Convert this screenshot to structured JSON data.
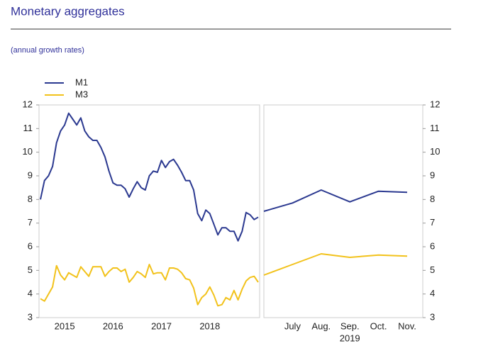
{
  "header": {
    "title": "Monetary aggregates",
    "subtitle": "(annual growth rates)"
  },
  "chart_data": [
    {
      "type": "line",
      "categories": [
        null,
        null,
        null,
        null,
        null,
        null,
        "2015",
        null,
        null,
        null,
        null,
        null,
        null,
        null,
        null,
        null,
        null,
        null,
        "2016",
        null,
        null,
        null,
        null,
        null,
        null,
        null,
        null,
        null,
        null,
        null,
        "2017",
        null,
        null,
        null,
        null,
        null,
        null,
        null,
        null,
        null,
        null,
        null,
        "2018",
        null,
        null,
        null,
        null,
        null,
        null,
        null,
        null,
        null,
        null,
        null,
        null
      ],
      "ylim": [
        3,
        12
      ],
      "yticks": [
        3,
        4,
        5,
        6,
        7,
        8,
        9,
        10,
        11,
        12
      ],
      "legend": "top-left",
      "series": [
        {
          "name": "M1",
          "color": "#2b3990",
          "values": [
            8.0,
            8.8,
            9.0,
            9.4,
            10.4,
            10.9,
            11.15,
            11.65,
            11.4,
            11.15,
            11.45,
            10.9,
            10.65,
            10.5,
            10.5,
            10.2,
            9.8,
            9.2,
            8.7,
            8.6,
            8.6,
            8.45,
            8.1,
            8.45,
            8.75,
            8.5,
            8.4,
            9.0,
            9.2,
            9.15,
            9.65,
            9.35,
            9.6,
            9.7,
            9.45,
            9.15,
            8.8,
            8.8,
            8.4,
            7.4,
            7.1,
            7.55,
            7.4,
            6.95,
            6.5,
            6.8,
            6.8,
            6.65,
            6.65,
            6.25,
            6.65,
            7.45,
            7.35,
            7.15,
            7.25
          ]
        },
        {
          "name": "M3",
          "color": "#f2c21b",
          "values": [
            3.8,
            3.7,
            4.0,
            4.3,
            5.2,
            4.8,
            4.6,
            4.9,
            4.8,
            4.7,
            5.15,
            4.95,
            4.75,
            5.15,
            5.15,
            5.15,
            4.75,
            4.95,
            5.1,
            5.1,
            4.95,
            5.05,
            4.5,
            4.7,
            4.95,
            4.85,
            4.7,
            5.25,
            4.85,
            4.9,
            4.9,
            4.6,
            5.1,
            5.1,
            5.05,
            4.9,
            4.65,
            4.6,
            4.25,
            3.55,
            3.85,
            4.0,
            4.3,
            3.95,
            3.5,
            3.55,
            3.85,
            3.75,
            4.15,
            3.75,
            4.2,
            4.55,
            4.7,
            4.75,
            4.5
          ]
        }
      ]
    },
    {
      "type": "line",
      "categories": [
        null,
        "July",
        "Aug.",
        "Sep.",
        "Oct.",
        "Nov."
      ],
      "xlabel": "2019",
      "ylim": [
        3,
        12
      ],
      "yticks": [
        3,
        4,
        5,
        6,
        7,
        8,
        9,
        10,
        11,
        12
      ],
      "series": [
        {
          "color": "#2b3990",
          "values": [
            7.5,
            7.85,
            8.4,
            7.9,
            8.35,
            8.3
          ]
        },
        {
          "color": "#f2c21b",
          "values": [
            4.8,
            5.25,
            5.7,
            5.55,
            5.65,
            5.6
          ]
        }
      ]
    }
  ]
}
